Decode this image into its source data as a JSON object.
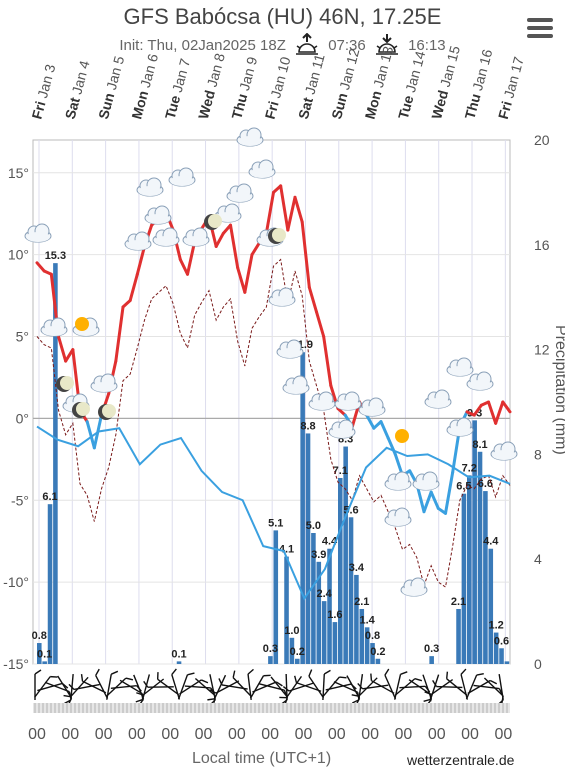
{
  "header": {
    "title": "GFS Babócsa (HU) 46N, 17.25E",
    "init": "Init: Thu, 02Jan2025 18Z",
    "sunrise": "07:36",
    "sunset": "16:13"
  },
  "footer": {
    "xlabel": "Local time (UTC+1)",
    "brand": "wetterzentrale.de",
    "hour_label": "00"
  },
  "chart_data": {
    "type": "bar+line",
    "days": [
      {
        "name": "Fri",
        "date": "Jan 3"
      },
      {
        "name": "Sat",
        "date": "Jan 4"
      },
      {
        "name": "Sun",
        "date": "Jan 5"
      },
      {
        "name": "Mon",
        "date": "Jan 6"
      },
      {
        "name": "Tue",
        "date": "Jan 7"
      },
      {
        "name": "Wed",
        "date": "Jan 8"
      },
      {
        "name": "Thu",
        "date": "Jan 9"
      },
      {
        "name": "Fri",
        "date": "Jan 10"
      },
      {
        "name": "Sat",
        "date": "Jan 11"
      },
      {
        "name": "Sun",
        "date": "Jan 12"
      },
      {
        "name": "Mon",
        "date": "Jan 13"
      },
      {
        "name": "Tue",
        "date": "Jan 14"
      },
      {
        "name": "Wed",
        "date": "Jan 15"
      },
      {
        "name": "Thu",
        "date": "Jan 16"
      },
      {
        "name": "Fri",
        "date": "Jan 17"
      }
    ],
    "temp_axis": {
      "min": -15,
      "max": 17,
      "ticks": [
        15,
        10,
        5,
        0,
        -5,
        -10,
        -15
      ],
      "unit": "°"
    },
    "precip_axis": {
      "min": 0,
      "max": 20,
      "ticks": [
        20,
        16,
        12,
        8,
        4,
        0
      ],
      "label": "Precipitation (mm)"
    },
    "temperature_max": [
      9.5,
      9.0,
      8.8,
      5.0,
      3.5,
      4.2,
      0.5,
      -0.2,
      -1.8,
      0.2,
      1.5,
      3.5,
      6.8,
      7.2,
      8.8,
      10.5,
      11.8,
      12.2,
      12.6,
      11.5,
      9.7,
      8.8,
      10.8,
      11.6,
      12.3,
      10.5,
      11.3,
      11.8,
      9.2,
      7.7,
      10.0,
      10.7,
      11.3,
      13.8,
      14.2,
      11.5,
      13.5,
      12.0,
      8.0,
      6.5,
      5.0,
      2.0,
      0.6,
      0.2,
      -0.5,
      1.0,
      0.2,
      -0.6,
      -0.2,
      -1.2,
      -2.2,
      -3.5,
      -3.2,
      -4.0,
      -5.7,
      -4.5,
      -5.5,
      -5.8,
      -3.3,
      -0.5,
      0.4,
      0.2,
      0.8,
      1.0,
      -0.3,
      1.0,
      0.4
    ],
    "temperature_min": [
      -0.5,
      -1.3,
      -1.7,
      -0.8,
      -0.6,
      -2.8,
      -1.6,
      -1.2,
      -3.2,
      -4.5,
      -5.0,
      -7.8,
      -8.1,
      -11.0,
      -9.2,
      -6.0,
      -3.0,
      -1.8,
      -2.3,
      -2.2,
      -2.8,
      -3.6,
      -3.5,
      -4.0
    ],
    "precipitation": [
      0.8,
      0.1,
      6.1,
      15.3,
      0,
      0,
      0,
      0,
      0,
      0,
      0,
      0,
      0,
      0,
      0,
      0,
      0,
      0,
      0,
      0,
      0,
      0,
      0,
      0,
      0,
      0,
      0.1,
      0,
      0,
      0,
      0,
      0,
      0,
      0,
      0,
      0,
      0,
      0,
      0,
      0,
      0,
      0,
      0,
      0.3,
      5.1,
      0,
      4.1,
      1.0,
      0.2,
      11.9,
      8.8,
      5.0,
      3.9,
      2.4,
      4.4,
      1.6,
      7.1,
      8.3,
      5.6,
      3.4,
      2.1,
      1.4,
      0.8,
      0.2,
      0,
      0,
      0,
      0,
      0,
      0,
      0,
      0,
      0,
      0.3,
      0,
      0,
      0,
      0,
      2.1,
      6.5,
      7.2,
      9.3,
      8.1,
      6.6,
      4.4,
      1.2,
      0.6,
      0.1
    ],
    "precip_labels": [
      "0.8",
      "0.1",
      "6.1",
      "15.3",
      "0.1",
      "0.3",
      "5.1",
      "4.1",
      "1.0",
      "0.2",
      "11.9",
      "8.8",
      "5.0",
      "3.9",
      "2.4",
      "4.4",
      "1.6",
      "7.1",
      "8.3",
      "5.6",
      "3.4",
      "2.1",
      "1.4",
      "0.8",
      "0.2",
      "0.3",
      "2.1",
      "6.5",
      "7.2",
      "9.3",
      "8.1",
      "6.6",
      "4.4",
      "1.2",
      "0.6"
    ]
  }
}
